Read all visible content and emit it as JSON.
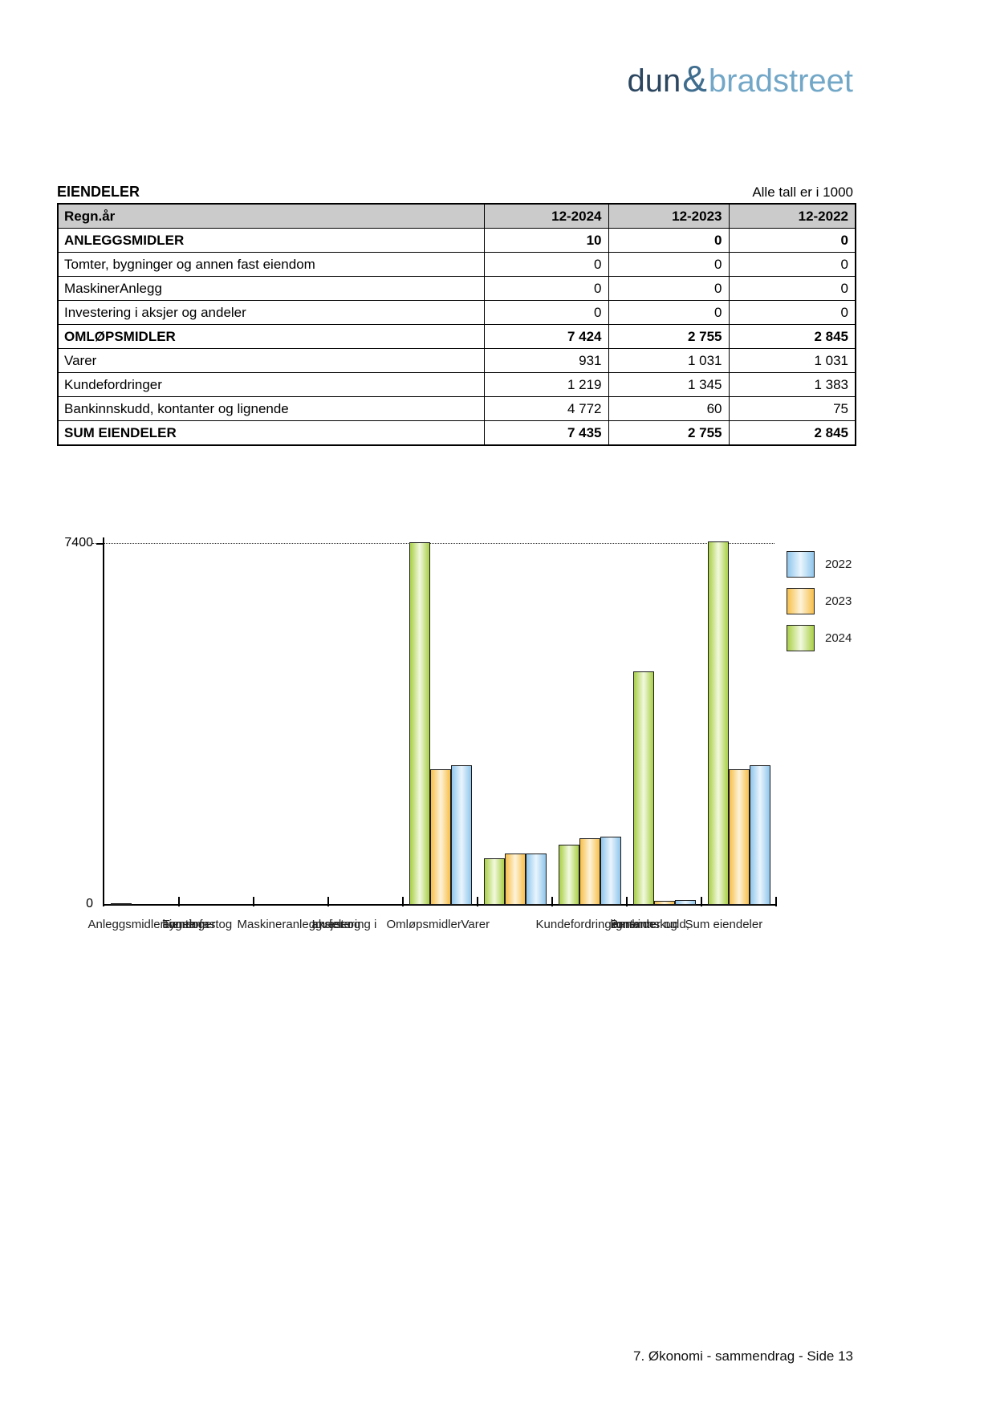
{
  "logo": {
    "dun": "dun",
    "amp": "&",
    "bradstreet": "bradstreet"
  },
  "section": {
    "title": "EIENDELER",
    "note": "Alle tall er i 1000"
  },
  "table": {
    "header": [
      "Regn.år",
      "12-2024",
      "12-2023",
      "12-2022"
    ],
    "rows": [
      {
        "label": "ANLEGGSMIDLER",
        "values": [
          "10",
          "0",
          "0"
        ]
      },
      {
        "label": "Tomter, bygninger og annen fast eiendom",
        "values": [
          "0",
          "0",
          "0"
        ]
      },
      {
        "label": "MaskinerAnlegg",
        "values": [
          "0",
          "0",
          "0"
        ]
      },
      {
        "label": "Investering i aksjer og andeler",
        "values": [
          "0",
          "0",
          "0"
        ]
      },
      {
        "label": "OMLØPSMIDLER",
        "values": [
          "7 424",
          "2 755",
          "2 845"
        ]
      },
      {
        "label": "Varer",
        "values": [
          "931",
          "1 031",
          "1 031"
        ]
      },
      {
        "label": "Kundefordringer",
        "values": [
          "1 219",
          "1 345",
          "1 383"
        ]
      },
      {
        "label": "Bankinnskudd, kontanter og lignende",
        "values": [
          "4 772",
          "60",
          "75"
        ]
      },
      {
        "label": "SUM EIENDELER",
        "values": [
          "7 435",
          "2 755",
          "2 845"
        ]
      }
    ]
  },
  "chart_data": {
    "type": "bar",
    "title": "",
    "categories": [
      "Anleggsmidler",
      "Tomter, bygninger og annen fast eiendom",
      "Maskineranlegg",
      "Investering i aksjer og andeler",
      "Omløpsmidler",
      "Varer",
      "Kundefordringer",
      "Bankinnskudd, kontanter og lignende",
      "Sum eiendeler"
    ],
    "category_label_lines": [
      [
        "Anleggsmidler"
      ],
      [
        "Tomter,",
        "bygninger og",
        "annen fast",
        "eiendom"
      ],
      [
        "Maskineranlegg"
      ],
      [
        "Investering i",
        "aksjer og",
        "andeler"
      ],
      [
        "Omløpsmidler"
      ],
      [
        "Varer"
      ],
      [
        "Kundefordringer"
      ],
      [
        "Bankinnskudd,",
        "kontanter og",
        "lignende"
      ],
      [
        "Sum eiendeler"
      ]
    ],
    "series": [
      {
        "name": "2024",
        "values": [
          10,
          0,
          0,
          0,
          7424,
          931,
          1219,
          4772,
          7435
        ],
        "edge_color": "#a9cf47",
        "center_color": "#f2f9df"
      },
      {
        "name": "2023",
        "values": [
          0,
          0,
          0,
          0,
          2755,
          1031,
          1345,
          60,
          2755
        ],
        "edge_color": "#f7bf4b",
        "center_color": "#fdf3da"
      },
      {
        "name": "2022",
        "values": [
          0,
          0,
          0,
          0,
          2845,
          1031,
          1383,
          75,
          2845
        ],
        "edge_color": "#90c6ec",
        "center_color": "#eaf5fd"
      }
    ],
    "legend": [
      {
        "label": "2022",
        "edge_color": "#90c6ec",
        "center_color": "#eaf5fd"
      },
      {
        "label": "2023",
        "edge_color": "#f7bf4b",
        "center_color": "#fdf3da"
      },
      {
        "label": "2024",
        "edge_color": "#a9cf47",
        "center_color": "#f2f9df"
      }
    ],
    "ylim": [
      0,
      7400
    ],
    "ytick_labels": [
      "0",
      "7400"
    ],
    "gridline_value": 7400,
    "grid": "dotted-top-only",
    "legend_position": "right"
  },
  "footer": {
    "text": "7. Økonomi - sammendrag - Side 13"
  }
}
